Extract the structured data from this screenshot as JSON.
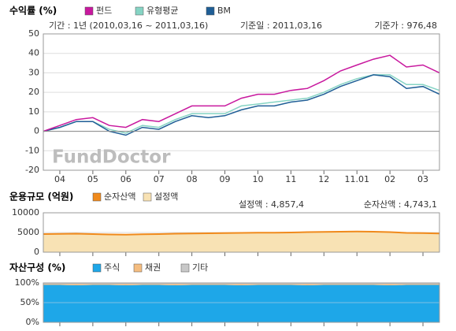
{
  "chart_data": [
    {
      "type": "line",
      "title": "수익률 (%)",
      "annotations": [
        "기간 : 1년 (2010,03,16 ~ 2011,03,16)",
        "기준일 : 2011,03,16",
        "기준가 : 976,48"
      ],
      "watermark": "FundDoctor",
      "categories": [
        null,
        "04",
        null,
        "05",
        null,
        "06",
        null,
        "07",
        null,
        "08",
        null,
        "09",
        null,
        "10",
        null,
        "11",
        null,
        "12",
        null,
        "11.01",
        null,
        "02",
        null,
        "03",
        null
      ],
      "series": [
        {
          "name": "펀드",
          "color": "#c8189e",
          "values": [
            0,
            3,
            6,
            7,
            3,
            2,
            6,
            5,
            9,
            13,
            13,
            13,
            17,
            19,
            19,
            21,
            22,
            26,
            31,
            34,
            37,
            39,
            33,
            34,
            30
          ]
        },
        {
          "name": "유형평균",
          "color": "#86d4c4",
          "values": [
            0,
            2,
            5,
            5,
            1,
            -1,
            3,
            2,
            6,
            9,
            9,
            9,
            13,
            14,
            15,
            16,
            17,
            20,
            24,
            27,
            29,
            29,
            24,
            24,
            21
          ]
        },
        {
          "name": "BM",
          "color": "#1f5e96",
          "values": [
            0,
            2,
            5,
            5,
            0,
            -2,
            2,
            1,
            5,
            8,
            7,
            8,
            11,
            13,
            13,
            15,
            16,
            19,
            23,
            26,
            29,
            28,
            22,
            23,
            19
          ]
        }
      ],
      "ylim": [
        -20,
        50
      ],
      "yticks": [
        -20,
        -10,
        0,
        10,
        20,
        30,
        40,
        50
      ],
      "grid": true
    },
    {
      "type": "area",
      "title": "운용규모 (억원)",
      "annotations": [
        "설정액 : 4,857,4",
        "순자산액 : 4,743,1"
      ],
      "series": [
        {
          "name": "순자산액",
          "color": "#f08a1c",
          "style": "line",
          "values": [
            4600,
            4650,
            4700,
            4600,
            4500,
            4450,
            4550,
            4600,
            4700,
            4750,
            4800,
            4850,
            4900,
            4950,
            4950,
            5000,
            5100,
            5150,
            5200,
            5250,
            5200,
            5100,
            4900,
            4850,
            4743.1
          ]
        },
        {
          "name": "설정액",
          "color": "#f8e2b4",
          "style": "area",
          "values": [
            4700,
            4750,
            4800,
            4700,
            4600,
            4550,
            4650,
            4700,
            4800,
            4850,
            4900,
            4950,
            5000,
            5050,
            5050,
            5100,
            5200,
            5250,
            5300,
            5350,
            5300,
            5200,
            5000,
            4950,
            4857.4
          ]
        }
      ],
      "ylim": [
        0,
        10000
      ],
      "yticks": [
        0,
        5000,
        10000
      ],
      "grid": true
    },
    {
      "type": "stacked_area",
      "title": "자산구성 (%)",
      "series": [
        {
          "name": "주식",
          "color": "#1ea7e8",
          "values": [
            95,
            95,
            94,
            95,
            95,
            94,
            95,
            95,
            94,
            95,
            95,
            95,
            94,
            95,
            95,
            95,
            94,
            95,
            95,
            95,
            95,
            94,
            95,
            95,
            95
          ]
        },
        {
          "name": "채권",
          "color": "#f5bd80",
          "values": [
            2,
            2,
            3,
            2,
            2,
            3,
            2,
            2,
            3,
            2,
            2,
            2,
            3,
            2,
            2,
            2,
            3,
            2,
            2,
            2,
            2,
            3,
            2,
            2,
            2
          ]
        },
        {
          "name": "기타",
          "color": "#c8c8c8",
          "values": [
            3,
            3,
            3,
            3,
            3,
            3,
            3,
            3,
            3,
            3,
            3,
            3,
            3,
            3,
            3,
            3,
            3,
            3,
            3,
            3,
            3,
            3,
            3,
            3,
            3
          ]
        }
      ],
      "ylim": [
        0,
        100
      ],
      "yticks": [
        {
          "value": 0,
          "label": "0%"
        },
        {
          "value": 50,
          "label": "50%"
        },
        {
          "value": 100,
          "label": "100%"
        }
      ],
      "grid": true
    }
  ]
}
